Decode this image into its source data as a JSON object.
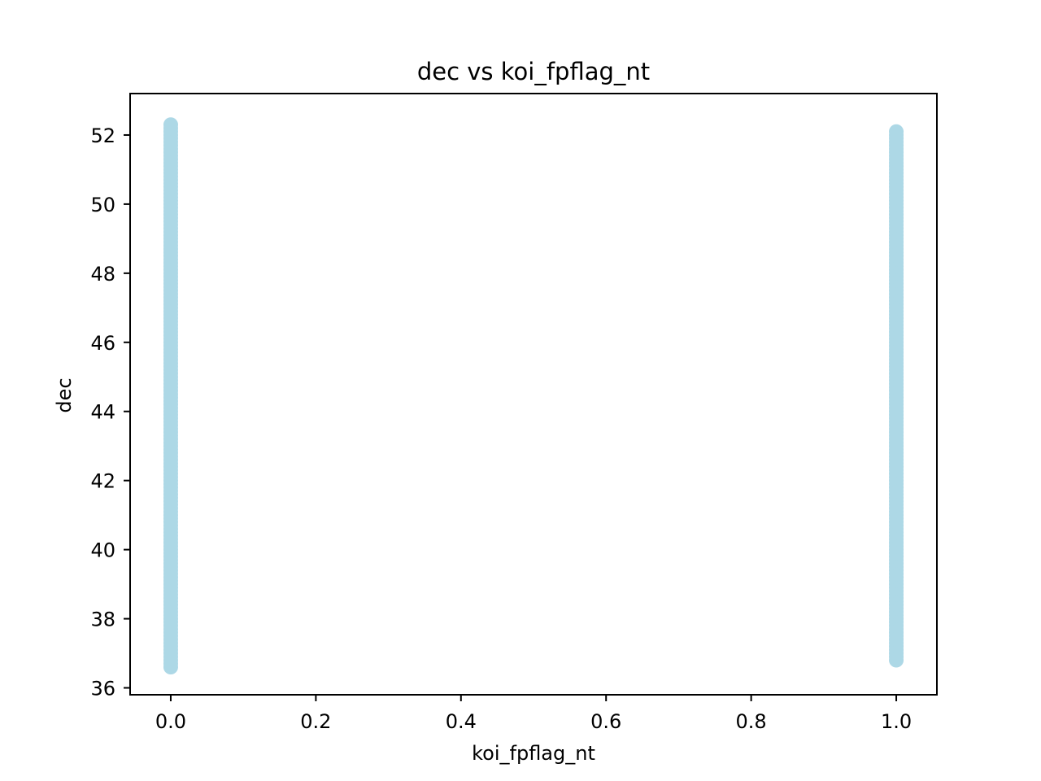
{
  "chart_data": {
    "type": "scatter",
    "title": "dec vs koi_fpflag_nt",
    "xlabel": "koi_fpflag_nt",
    "ylabel": "dec",
    "xlim": [
      -0.056,
      1.056
    ],
    "ylim": [
      35.8,
      53.2
    ],
    "x_ticks": [
      0.0,
      0.2,
      0.4,
      0.6,
      0.8,
      1.0
    ],
    "x_tick_labels": [
      "0.0",
      "0.2",
      "0.4",
      "0.6",
      "0.8",
      "1.0"
    ],
    "y_ticks": [
      36,
      38,
      40,
      42,
      44,
      46,
      48,
      50,
      52
    ],
    "y_tick_labels": [
      "36",
      "38",
      "40",
      "42",
      "44",
      "46",
      "48",
      "50",
      "52"
    ],
    "grid": false,
    "point_color": "#add8e6",
    "series": [
      {
        "clusters": [
          {
            "x": 0.0,
            "y_min": 36.6,
            "y_max": 52.3,
            "step": 0.1
          },
          {
            "x": 1.0,
            "y_min": 36.8,
            "y_max": 52.1,
            "step": 0.1
          }
        ]
      }
    ]
  }
}
